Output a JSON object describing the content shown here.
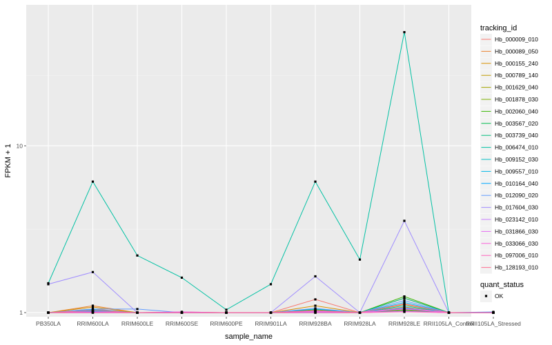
{
  "chart_data": {
    "type": "line",
    "title": "",
    "xlabel": "sample_name",
    "ylabel": "FPKM + 1",
    "yscale": "log10",
    "ylim": [
      0.945,
      70
    ],
    "yticks": [
      1,
      10
    ],
    "ytick_labels": [
      "1",
      "10"
    ],
    "grid": true,
    "background": "#ebebeb",
    "categories": [
      "PB350LA",
      "RRIM600LA",
      "RRIM600LE",
      "RRIM600SE",
      "RRIM600PE",
      "RRIM901LA",
      "RRIM928BA",
      "RRIM928LA",
      "RRIM928LE",
      "RRII105LA_Control",
      "RRII105LA_Stressed"
    ],
    "series_legend_title": "tracking_id",
    "shape_legend_title": "quant_status",
    "shape_legend": [
      {
        "label": "OK",
        "shape": "square"
      }
    ],
    "legend_position": "right",
    "series": [
      {
        "name": "Hb_000009_010",
        "color": "#F8766D",
        "values": [
          1.0,
          1.05,
          1.0,
          1.01,
          1.0,
          1.0,
          1.2,
          1.0,
          1.22,
          1.0,
          1.0
        ]
      },
      {
        "name": "Hb_000089_050",
        "color": "#EA8331",
        "values": [
          1.0,
          1.1,
          1.0,
          1.0,
          1.0,
          1.0,
          1.03,
          1.0,
          1.05,
          1.0,
          1.0
        ]
      },
      {
        "name": "Hb_000155_240",
        "color": "#D89000",
        "values": [
          1.0,
          1.08,
          1.0,
          1.0,
          1.0,
          1.0,
          1.1,
          1.0,
          1.12,
          1.0,
          1.0
        ]
      },
      {
        "name": "Hb_000789_140",
        "color": "#C09B00",
        "values": [
          1.0,
          1.02,
          1.0,
          1.0,
          1.0,
          1.0,
          1.02,
          1.0,
          1.04,
          1.0,
          1.0
        ]
      },
      {
        "name": "Hb_001629_040",
        "color": "#A3A500",
        "values": [
          1.0,
          1.0,
          1.0,
          1.0,
          1.0,
          1.0,
          1.0,
          1.0,
          1.08,
          1.0,
          1.0
        ]
      },
      {
        "name": "Hb_001878_030",
        "color": "#7CAE00",
        "values": [
          1.0,
          1.01,
          1.0,
          1.0,
          1.0,
          1.0,
          1.01,
          1.0,
          1.02,
          1.0,
          1.0
        ]
      },
      {
        "name": "Hb_002060_040",
        "color": "#39B600",
        "values": [
          1.0,
          1.03,
          1.0,
          1.0,
          1.0,
          1.0,
          1.04,
          1.0,
          1.25,
          1.0,
          1.0
        ]
      },
      {
        "name": "Hb_003567_020",
        "color": "#00BB4E",
        "values": [
          1.0,
          1.0,
          1.0,
          1.0,
          1.0,
          1.0,
          1.0,
          1.0,
          1.03,
          1.0,
          1.0
        ]
      },
      {
        "name": "Hb_003739_040",
        "color": "#00BF7D",
        "values": [
          1.0,
          1.02,
          1.0,
          1.0,
          1.0,
          1.0,
          1.02,
          1.0,
          1.22,
          1.0,
          1.0
        ]
      },
      {
        "name": "Hb_006474_010",
        "color": "#00C1A3",
        "values": [
          1.5,
          6.1,
          2.2,
          1.62,
          1.04,
          1.48,
          6.1,
          2.08,
          48.0,
          1.0,
          1.0
        ]
      },
      {
        "name": "Hb_009152_030",
        "color": "#00BFC4",
        "values": [
          1.0,
          1.01,
          1.0,
          1.0,
          1.0,
          1.0,
          1.03,
          1.0,
          1.1,
          1.0,
          1.0
        ]
      },
      {
        "name": "Hb_009557_010",
        "color": "#00B8E7",
        "values": [
          1.0,
          1.04,
          1.0,
          1.0,
          1.0,
          1.0,
          1.05,
          1.0,
          1.15,
          1.0,
          1.0
        ]
      },
      {
        "name": "Hb_010164_040",
        "color": "#00A9FF",
        "values": [
          1.0,
          1.02,
          1.0,
          1.0,
          1.0,
          1.0,
          1.02,
          1.0,
          1.06,
          1.0,
          1.0
        ]
      },
      {
        "name": "Hb_012090_020",
        "color": "#619CFF",
        "values": [
          1.0,
          1.05,
          1.05,
          1.0,
          1.0,
          1.0,
          1.06,
          1.0,
          1.18,
          1.0,
          1.01
        ]
      },
      {
        "name": "Hb_017604_030",
        "color": "#9F8CFF",
        "values": [
          1.48,
          1.75,
          1.0,
          1.0,
          1.0,
          1.0,
          1.65,
          1.0,
          3.55,
          1.0,
          1.0
        ]
      },
      {
        "name": "Hb_023142_010",
        "color": "#C77CFF",
        "values": [
          1.0,
          1.01,
          1.0,
          1.0,
          1.0,
          1.0,
          1.01,
          1.0,
          1.07,
          1.0,
          1.0
        ]
      },
      {
        "name": "Hb_031866_030",
        "color": "#E76BF3",
        "values": [
          1.0,
          1.0,
          1.0,
          1.01,
          1.0,
          1.0,
          1.0,
          1.0,
          1.02,
          1.0,
          1.0
        ]
      },
      {
        "name": "Hb_033066_030",
        "color": "#FA62DB",
        "values": [
          1.0,
          1.01,
          1.0,
          1.0,
          1.0,
          1.0,
          1.02,
          1.0,
          1.05,
          1.0,
          1.0
        ]
      },
      {
        "name": "Hb_097006_010",
        "color": "#FF62BC",
        "values": [
          1.0,
          1.0,
          1.0,
          1.0,
          1.0,
          1.0,
          1.0,
          1.0,
          1.01,
          1.0,
          1.0
        ]
      },
      {
        "name": "Hb_128193_010",
        "color": "#FF6C91",
        "values": [
          1.0,
          1.03,
          1.0,
          1.0,
          1.0,
          1.0,
          1.03,
          1.0,
          1.13,
          1.0,
          1.0
        ]
      }
    ]
  }
}
